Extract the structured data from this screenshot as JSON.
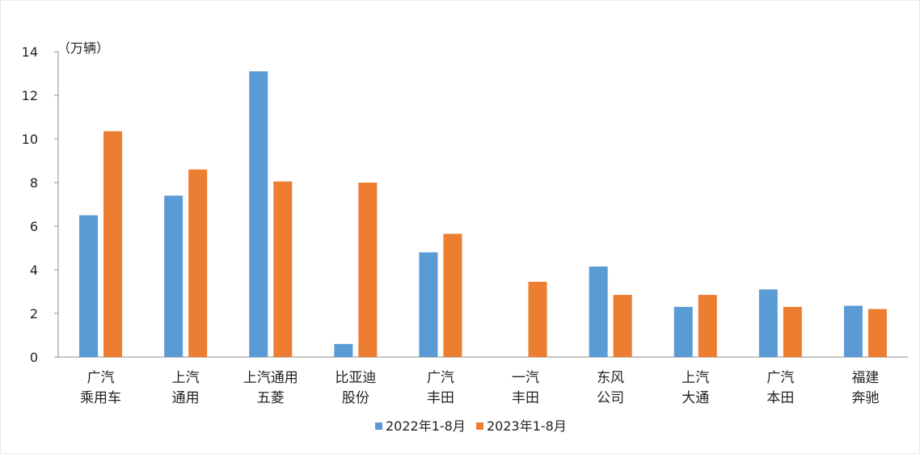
{
  "chart_data": {
    "type": "bar",
    "unit_label": "（万辆）",
    "categories": [
      [
        "广汽",
        "乘用车"
      ],
      [
        "上汽",
        "通用"
      ],
      [
        "上汽通用",
        "五菱"
      ],
      [
        "比亚迪",
        "股份"
      ],
      [
        "广汽",
        "丰田"
      ],
      [
        "一汽",
        "丰田"
      ],
      [
        "东风",
        "公司"
      ],
      [
        "上汽",
        "大通"
      ],
      [
        "广汽",
        "本田"
      ],
      [
        "福建",
        "奔驰"
      ]
    ],
    "series": [
      {
        "name": "2022年1-8月",
        "color": "#5b9bd5",
        "values": [
          6.5,
          7.4,
          13.1,
          0.6,
          4.8,
          null,
          4.15,
          2.3,
          3.1,
          2.35
        ]
      },
      {
        "name": "2023年1-8月",
        "color": "#ed7d31",
        "values": [
          10.35,
          8.6,
          8.05,
          8.0,
          5.65,
          3.45,
          2.85,
          2.85,
          2.3,
          2.2
        ]
      }
    ],
    "ylim": [
      0,
      14
    ],
    "yticks": [
      0,
      2,
      4,
      6,
      8,
      10,
      12,
      14
    ],
    "grid": false,
    "legend_position": "bottom"
  }
}
